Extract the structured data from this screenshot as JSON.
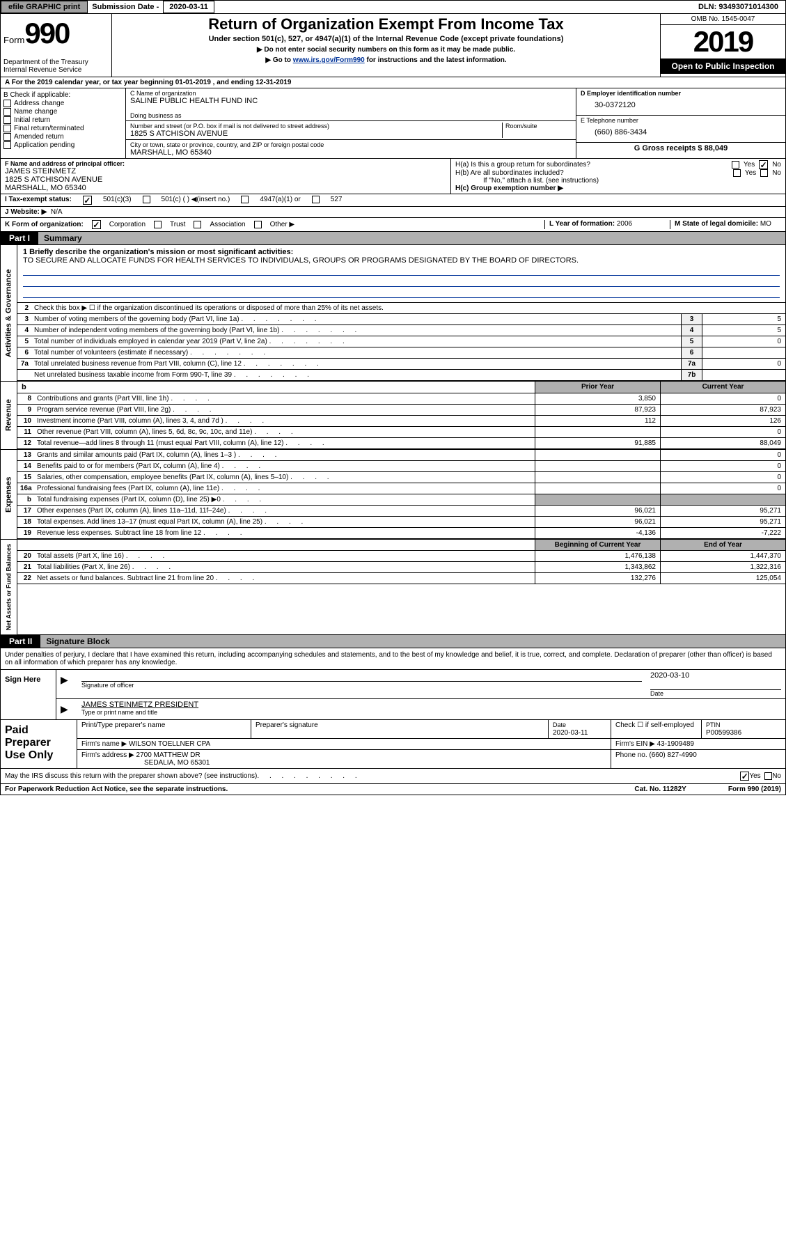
{
  "topbar": {
    "efile": "efile GRAPHIC print",
    "sub_label": "Submission Date -",
    "sub_date": "2020-03-11",
    "dln": "DLN: 93493071014300"
  },
  "header": {
    "form_word": "Form",
    "form_num": "990",
    "dept": "Department of the Treasury\nInternal Revenue Service",
    "title": "Return of Organization Exempt From Income Tax",
    "subtitle": "Under section 501(c), 527, or 4947(a)(1) of the Internal Revenue Code (except private foundations)",
    "instr1": "▶ Do not enter social security numbers on this form as it may be made public.",
    "instr2_pre": "▶ Go to ",
    "instr2_link": "www.irs.gov/Form990",
    "instr2_post": " for instructions and the latest information.",
    "omb": "OMB No. 1545-0047",
    "year": "2019",
    "open": "Open to Public Inspection"
  },
  "row_a": "A For the 2019 calendar year, or tax year beginning 01-01-2019    , and ending 12-31-2019",
  "col_b": {
    "hdr": "B Check if applicable:",
    "items": [
      "Address change",
      "Name change",
      "Initial return",
      "Final return/terminated",
      "Amended return",
      "Application pending"
    ]
  },
  "col_c": {
    "name_lbl": "C Name of organization",
    "name": "SALINE PUBLIC HEALTH FUND INC",
    "dba_lbl": "Doing business as",
    "addr_lbl": "Number and street (or P.O. box if mail is not delivered to street address)",
    "room_lbl": "Room/suite",
    "addr": "1825 S ATCHISON AVENUE",
    "city_lbl": "City or town, state or province, country, and ZIP or foreign postal code",
    "city": "MARSHALL, MO  65340"
  },
  "col_d": {
    "lbl": "D Employer identification number",
    "val": "30-0372120"
  },
  "col_e": {
    "lbl": "E Telephone number",
    "val": "(660) 886-3434"
  },
  "col_g": {
    "lbl": "G Gross receipts $",
    "val": "88,049"
  },
  "col_f": {
    "lbl": "F  Name and address of principal officer:",
    "name": "JAMES STEINMETZ",
    "addr1": "1825 S ATCHISON AVENUE",
    "addr2": "MARSHALL, MO  65340"
  },
  "col_h": {
    "a": "H(a)  Is this a group return for subordinates?",
    "b": "H(b)  Are all subordinates included?",
    "b_note": "If \"No,\" attach a list. (see instructions)",
    "c": "H(c)  Group exemption number ▶",
    "yes": "Yes",
    "no": "No"
  },
  "row_i": {
    "lbl": "I    Tax-exempt status:",
    "opts": [
      "501(c)(3)",
      "501(c) (  ) ◀(insert no.)",
      "4947(a)(1) or",
      "527"
    ]
  },
  "row_j": {
    "lbl": "J   Website: ▶",
    "val": "N/A"
  },
  "row_k": {
    "lbl": "K Form of organization:",
    "opts": [
      "Corporation",
      "Trust",
      "Association",
      "Other ▶"
    ],
    "l_lbl": "L Year of formation:",
    "l_val": "2006",
    "m_lbl": "M State of legal domicile:",
    "m_val": "MO"
  },
  "parts": {
    "p1": "Part I",
    "p1_title": "Summary",
    "p2": "Part II",
    "p2_title": "Signature Block"
  },
  "summary": {
    "mission_lbl": "1  Briefly describe the organization's mission or most significant activities:",
    "mission": "TO SECURE AND ALLOCATE FUNDS FOR HEALTH SERVICES TO INDIVIDUALS, GROUPS OR PROGRAMS DESIGNATED BY THE BOARD OF DIRECTORS.",
    "line2": "Check this box ▶ ☐  if the organization discontinued its operations or disposed of more than 25% of its net assets.",
    "gov": [
      {
        "n": "3",
        "t": "Number of voting members of the governing body (Part VI, line 1a)",
        "c": "3",
        "v": "5"
      },
      {
        "n": "4",
        "t": "Number of independent voting members of the governing body (Part VI, line 1b)",
        "c": "4",
        "v": "5"
      },
      {
        "n": "5",
        "t": "Total number of individuals employed in calendar year 2019 (Part V, line 2a)",
        "c": "5",
        "v": "0"
      },
      {
        "n": "6",
        "t": "Total number of volunteers (estimate if necessary)",
        "c": "6",
        "v": ""
      },
      {
        "n": "7a",
        "t": "Total unrelated business revenue from Part VIII, column (C), line 12",
        "c": "7a",
        "v": "0"
      },
      {
        "n": "",
        "t": "Net unrelated business taxable income from Form 990-T, line 39",
        "c": "7b",
        "v": ""
      }
    ],
    "prior_hdr": "Prior Year",
    "curr_hdr": "Current Year",
    "blank_b": "b",
    "rev": [
      {
        "n": "8",
        "t": "Contributions and grants (Part VIII, line 1h)",
        "p": "3,850",
        "c": "0"
      },
      {
        "n": "9",
        "t": "Program service revenue (Part VIII, line 2g)",
        "p": "87,923",
        "c": "87,923"
      },
      {
        "n": "10",
        "t": "Investment income (Part VIII, column (A), lines 3, 4, and 7d )",
        "p": "112",
        "c": "126"
      },
      {
        "n": "11",
        "t": "Other revenue (Part VIII, column (A), lines 5, 6d, 8c, 9c, 10c, and 11e)",
        "p": "",
        "c": "0"
      },
      {
        "n": "12",
        "t": "Total revenue—add lines 8 through 11 (must equal Part VIII, column (A), line 12)",
        "p": "91,885",
        "c": "88,049"
      }
    ],
    "exp": [
      {
        "n": "13",
        "t": "Grants and similar amounts paid (Part IX, column (A), lines 1–3 )",
        "p": "",
        "c": "0"
      },
      {
        "n": "14",
        "t": "Benefits paid to or for members (Part IX, column (A), line 4)",
        "p": "",
        "c": "0"
      },
      {
        "n": "15",
        "t": "Salaries, other compensation, employee benefits (Part IX, column (A), lines 5–10)",
        "p": "",
        "c": "0"
      },
      {
        "n": "16a",
        "t": "Professional fundraising fees (Part IX, column (A), line 11e)",
        "p": "",
        "c": "0"
      },
      {
        "n": "b",
        "t": "Total fundraising expenses (Part IX, column (D), line 25) ▶0",
        "p": "shaded",
        "c": "shaded"
      },
      {
        "n": "17",
        "t": "Other expenses (Part IX, column (A), lines 11a–11d, 11f–24e)",
        "p": "96,021",
        "c": "95,271"
      },
      {
        "n": "18",
        "t": "Total expenses. Add lines 13–17 (must equal Part IX, column (A), line 25)",
        "p": "96,021",
        "c": "95,271"
      },
      {
        "n": "19",
        "t": "Revenue less expenses. Subtract line 18 from line 12",
        "p": "-4,136",
        "c": "-7,222"
      }
    ],
    "net_hdr_l": "Beginning of Current Year",
    "net_hdr_r": "End of Year",
    "net": [
      {
        "n": "20",
        "t": "Total assets (Part X, line 16)",
        "p": "1,476,138",
        "c": "1,447,370"
      },
      {
        "n": "21",
        "t": "Total liabilities (Part X, line 26)",
        "p": "1,343,862",
        "c": "1,322,316"
      },
      {
        "n": "22",
        "t": "Net assets or fund balances. Subtract line 21 from line 20",
        "p": "132,276",
        "c": "125,054"
      }
    ],
    "vlabels": {
      "gov": "Activities & Governance",
      "rev": "Revenue",
      "exp": "Expenses",
      "net": "Net Assets or Fund Balances"
    }
  },
  "sig": {
    "penalty": "Under penalties of perjury, I declare that I have examined this return, including accompanying schedules and statements, and to the best of my knowledge and belief, it is true, correct, and complete. Declaration of preparer (other than officer) is based on all information of which preparer has any knowledge.",
    "sign_here": "Sign Here",
    "off_sig": "Signature of officer",
    "date_lbl": "Date",
    "date": "2020-03-10",
    "officer": "JAMES STEINMETZ  PRESIDENT",
    "type_lbl": "Type or print name and title",
    "paid": "Paid Preparer Use Only",
    "prep_name_lbl": "Print/Type preparer's name",
    "prep_sig_lbl": "Preparer's signature",
    "prep_date": "2020-03-11",
    "check_lbl": "Check ☐ if self-employed",
    "ptin_lbl": "PTIN",
    "ptin": "P00599386",
    "firm_lbl": "Firm's name   ▶",
    "firm": "WILSON TOELLNER CPA",
    "ein_lbl": "Firm's EIN ▶",
    "ein": "43-1909489",
    "addr_lbl": "Firm's address ▶",
    "addr1": "2700 MATTHEW DR",
    "addr2": "SEDALIA, MO  65301",
    "phone_lbl": "Phone no.",
    "phone": "(660) 827-4990",
    "discuss": "May the IRS discuss this return with the preparer shown above? (see instructions)",
    "yes": "Yes",
    "no": "No"
  },
  "footer": {
    "l": "For Paperwork Reduction Act Notice, see the separate instructions.",
    "c": "Cat. No. 11282Y",
    "r": "Form 990 (2019)"
  }
}
